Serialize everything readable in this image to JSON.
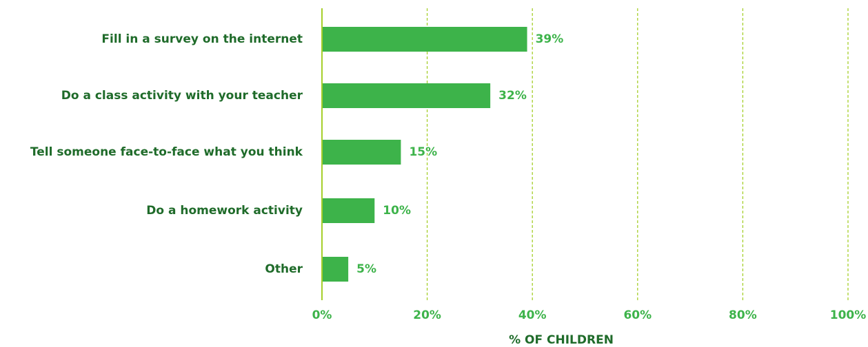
{
  "chart_data": {
    "type": "bar",
    "orientation": "horizontal",
    "categories": [
      "Fill in a survey on the internet",
      "Do a class activity with your teacher",
      "Tell someone face-to-face what you think",
      "Do a homework activity",
      "Other"
    ],
    "values": [
      39,
      32,
      15,
      10,
      5
    ],
    "value_labels": [
      "39%",
      "32%",
      "15%",
      "10%",
      "5%"
    ],
    "xlabel": "% OF CHILDREN",
    "ylabel": "",
    "xlim": [
      0,
      100
    ],
    "x_ticks": [
      0,
      20,
      40,
      60,
      80,
      100
    ],
    "x_tick_labels": [
      "0%",
      "20%",
      "40%",
      "60%",
      "80%",
      "100%"
    ],
    "grid": "vertical dashed",
    "legend": "none",
    "colors": {
      "bar": "#3db34a",
      "category_text": "#1f6b2a",
      "value_text": "#3db34a",
      "axis": "#a6cf2a",
      "grid": "#a6cf2a"
    }
  }
}
